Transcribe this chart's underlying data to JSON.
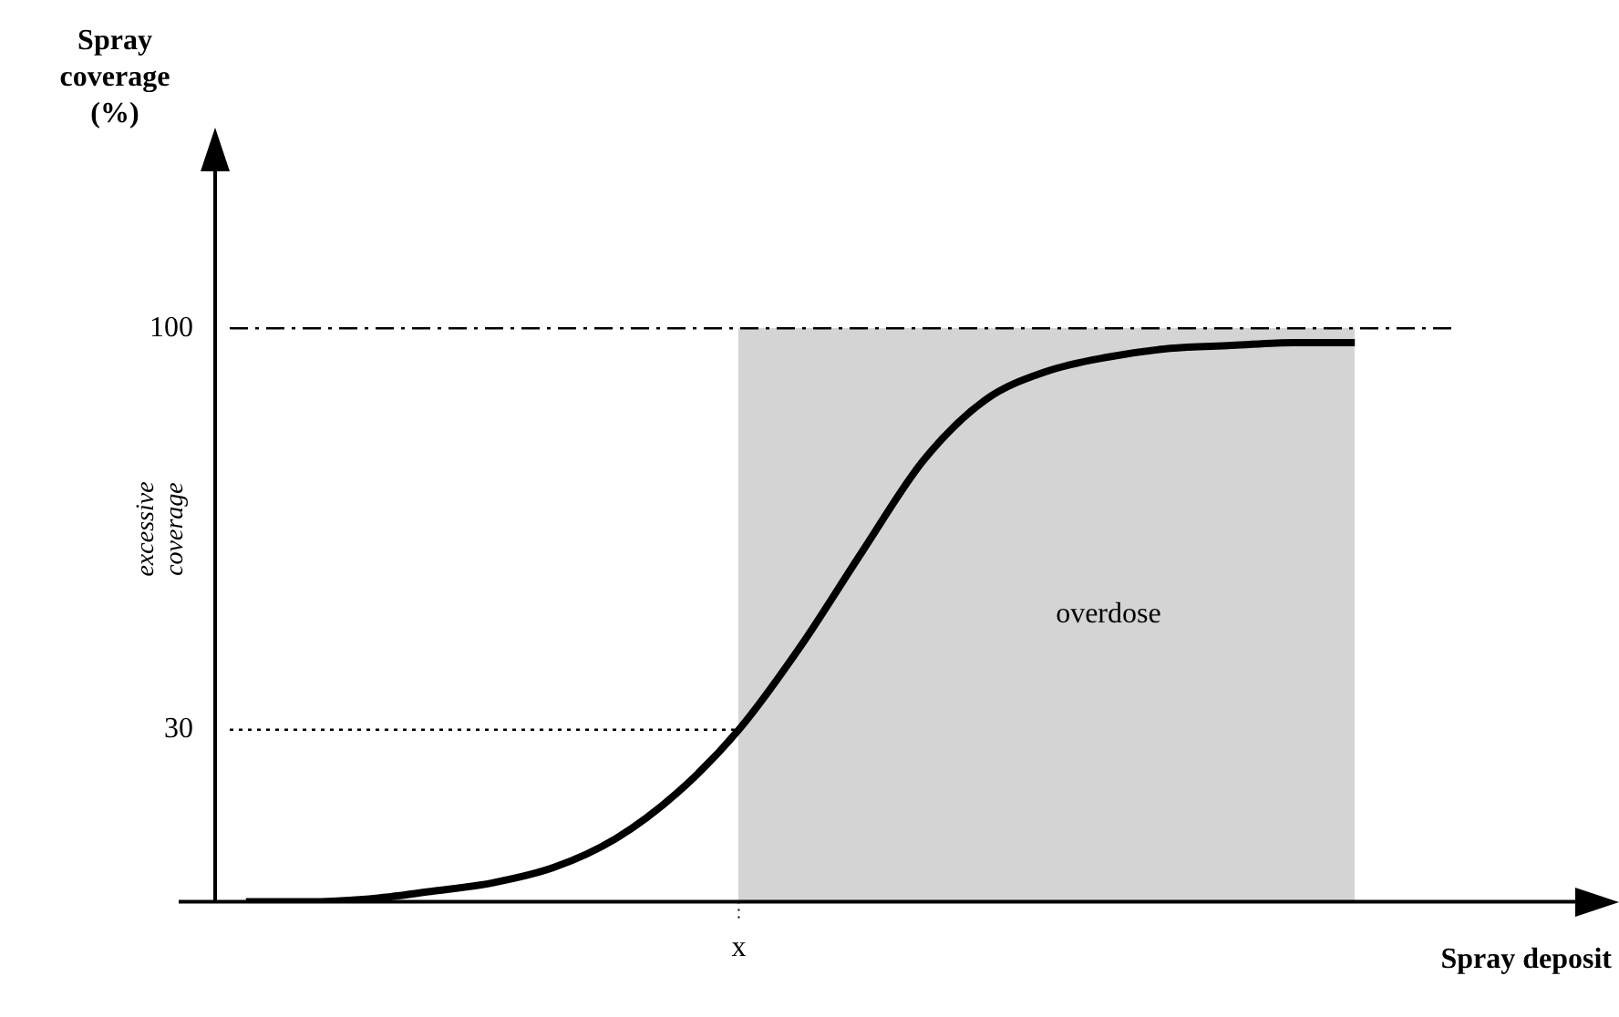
{
  "chart_data": {
    "type": "line",
    "xlabel": "Spray deposit",
    "ylabel": "Spray coverage (%)",
    "categories": [
      null,
      null,
      null,
      null,
      null,
      null,
      null,
      null,
      "x",
      null,
      null,
      null,
      null,
      null,
      null,
      null,
      null,
      null,
      null
    ],
    "series": [
      {
        "color": "#000000",
        "values": [
          0,
          0,
          0.5,
          1.8,
          3.3,
          6,
          11,
          19,
          30,
          44.5,
          61,
          77,
          87.5,
          92.5,
          95,
          96.5,
          97,
          97.5,
          97.5
        ]
      }
    ],
    "ylim": [
      0,
      128
    ],
    "yticks": [
      30,
      100
    ],
    "ref_lines": [
      {
        "axis": "y",
        "value": 100,
        "line_style": "dashdot",
        "color": "#000000"
      },
      {
        "axis": "y",
        "value": 30,
        "line_style": "dotted",
        "color": "#000000"
      }
    ],
    "annotations": [
      "excessive coverage",
      "overdose"
    ],
    "grid": false,
    "legend": false,
    "marker": "none",
    "line_style": "solid"
  }
}
